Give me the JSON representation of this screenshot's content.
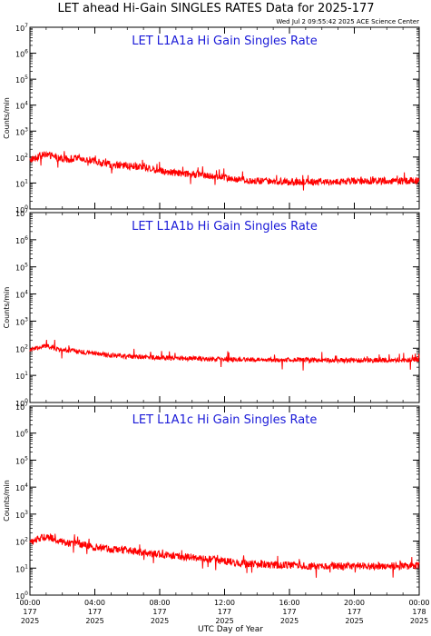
{
  "title": "LET ahead Hi-Gain SINGLES RATES Data for 2025-177",
  "timestamp": "Wed Jul  2 09:55:42 2025 ACE Science Center",
  "xlabel": "UTC Day of Year",
  "colors": {
    "series": "#ff0000",
    "panel_title": "#1a1ad8",
    "axes": "#000000"
  },
  "chart_data": [
    {
      "type": "line",
      "title": "LET L1A1a Hi Gain Singles Rate",
      "ylabel": "Counts/min",
      "yscale": "log",
      "ylim": [
        1,
        10000000
      ],
      "xlim": [
        0,
        24
      ],
      "xunit": "hours (UTC)",
      "yticks": [
        "10^0",
        "10^1",
        "10^2",
        "10^3",
        "10^4",
        "10^5",
        "10^6",
        "10^7"
      ],
      "x": [
        0,
        1,
        2,
        3,
        4,
        5,
        6,
        7,
        8,
        9,
        10,
        11,
        12,
        13,
        14,
        15,
        16,
        17,
        18,
        19,
        20,
        21,
        22,
        23,
        24
      ],
      "values": [
        80,
        130,
        80,
        90,
        70,
        50,
        45,
        40,
        30,
        25,
        22,
        20,
        16,
        13,
        12,
        12,
        11,
        11,
        11,
        11,
        12,
        12,
        12,
        12,
        12
      ]
    },
    {
      "type": "line",
      "title": "LET L1A1b Hi Gain Singles Rate",
      "ylabel": "Counts/min",
      "yscale": "log",
      "ylim": [
        1,
        10000000
      ],
      "xlim": [
        0,
        24
      ],
      "xunit": "hours (UTC)",
      "yticks": [
        "10^0",
        "10^1",
        "10^2",
        "10^3",
        "10^4",
        "10^5",
        "10^6",
        "10^7"
      ],
      "x": [
        0,
        1,
        2,
        3,
        4,
        5,
        6,
        7,
        8,
        9,
        10,
        11,
        12,
        13,
        14,
        15,
        16,
        17,
        18,
        19,
        20,
        21,
        22,
        23,
        24
      ],
      "values": [
        90,
        120,
        85,
        75,
        65,
        55,
        50,
        48,
        45,
        43,
        42,
        40,
        40,
        38,
        38,
        37,
        37,
        37,
        36,
        36,
        36,
        36,
        36,
        36,
        40
      ]
    },
    {
      "type": "line",
      "title": "LET L1A1c Hi Gain Singles Rate",
      "ylabel": "Counts/min",
      "yscale": "log",
      "ylim": [
        1,
        10000000
      ],
      "xlim": [
        0,
        24
      ],
      "xunit": "hours (UTC)",
      "yticks": [
        "10^0",
        "10^1",
        "10^2",
        "10^3",
        "10^4",
        "10^5",
        "10^6",
        "10^7"
      ],
      "x": [
        0,
        1,
        2,
        3,
        4,
        5,
        6,
        7,
        8,
        9,
        10,
        11,
        12,
        13,
        14,
        15,
        16,
        17,
        18,
        19,
        20,
        21,
        22,
        23,
        24
      ],
      "values": [
        90,
        150,
        90,
        80,
        60,
        50,
        45,
        38,
        32,
        28,
        25,
        22,
        18,
        15,
        14,
        13,
        13,
        12,
        12,
        12,
        12,
        12,
        12,
        12,
        12
      ]
    }
  ],
  "xticks": [
    {
      "time": "00:00",
      "doy": "177",
      "year": "2025"
    },
    {
      "time": "04:00",
      "doy": "177",
      "year": "2025"
    },
    {
      "time": "08:00",
      "doy": "177",
      "year": "2025"
    },
    {
      "time": "12:00",
      "doy": "177",
      "year": "2025"
    },
    {
      "time": "16:00",
      "doy": "177",
      "year": "2025"
    },
    {
      "time": "20:00",
      "doy": "177",
      "year": "2025"
    },
    {
      "time": "00:00",
      "doy": "178",
      "year": "2025"
    }
  ]
}
